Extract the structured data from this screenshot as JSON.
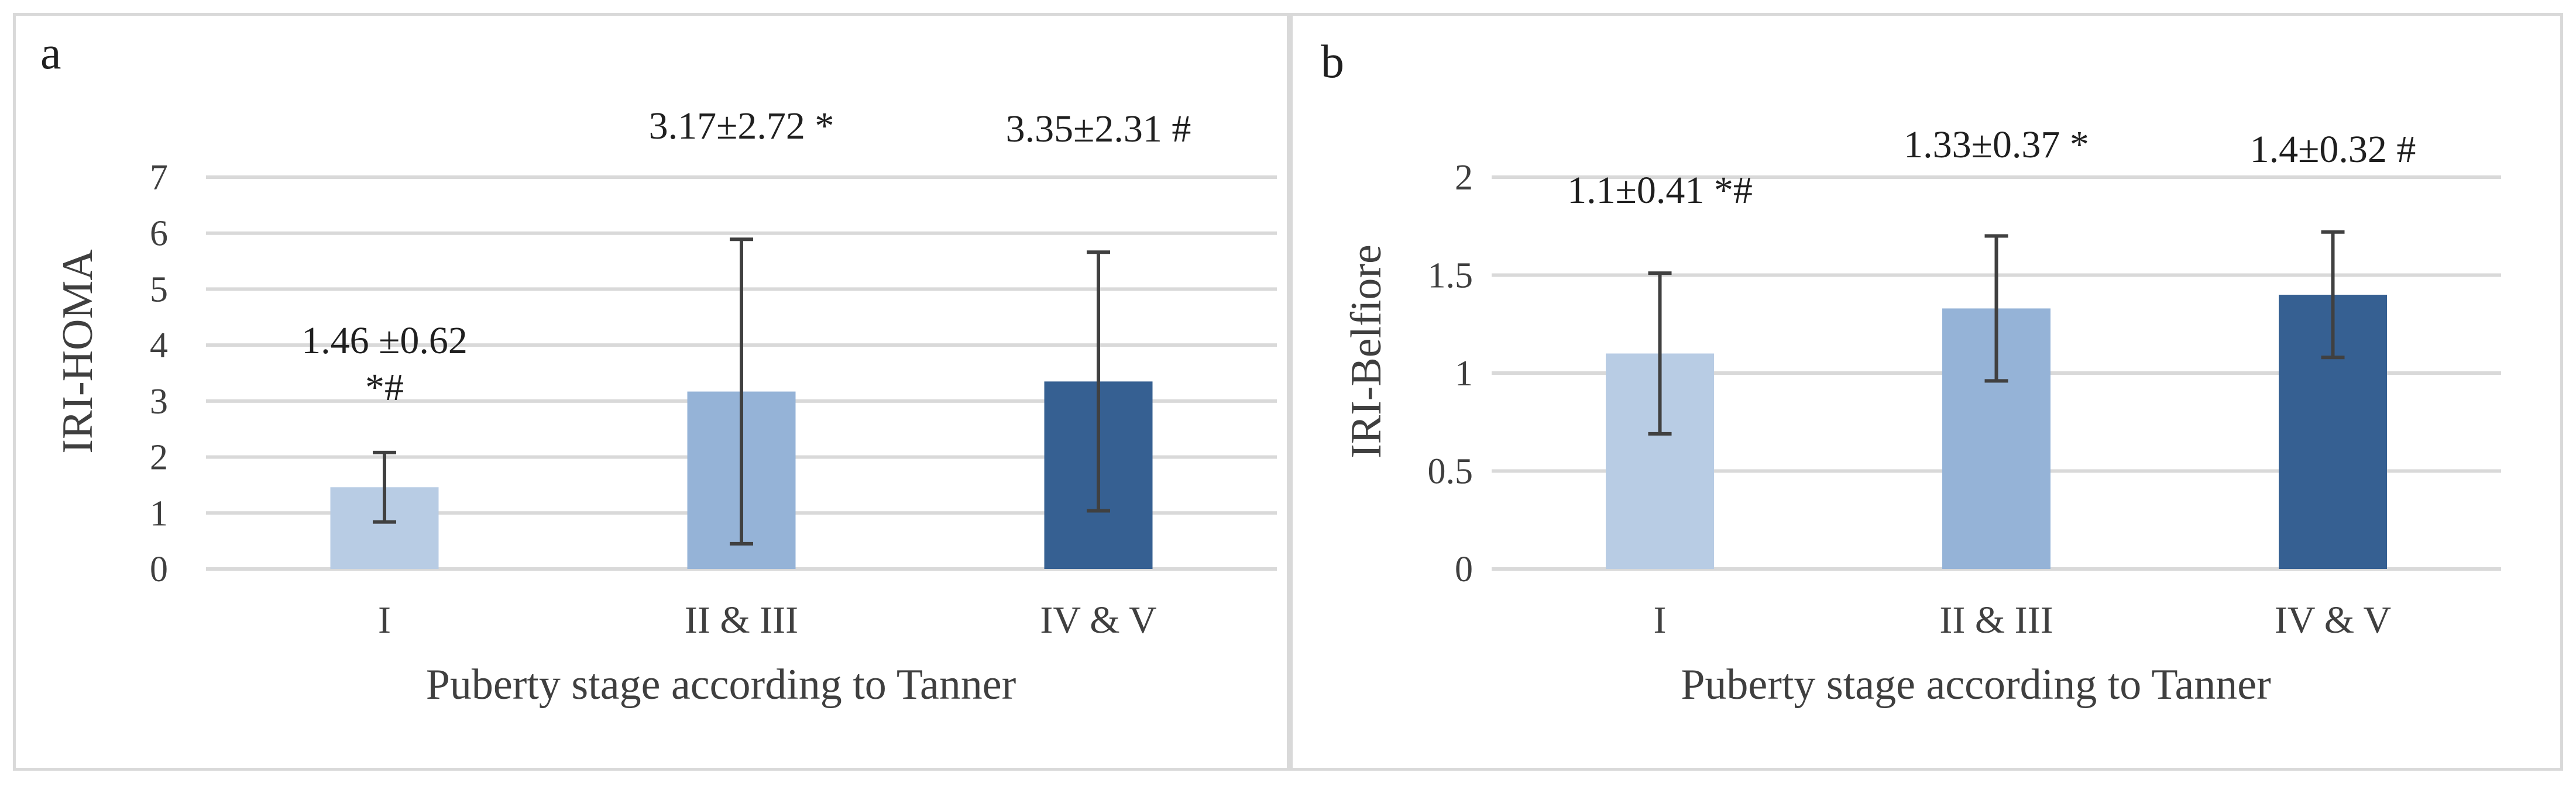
{
  "chart_data": [
    {
      "panel_label": "a",
      "type": "bar",
      "categories": [
        "I",
        "II & III",
        "IV & V"
      ],
      "values": [
        1.46,
        3.17,
        3.35
      ],
      "errors": [
        0.62,
        2.72,
        2.31
      ],
      "data_labels": [
        "1.46 ±0.62 *#",
        "3.17±2.72 *",
        "3.35±2.31 #"
      ],
      "data_label_lines": [
        [
          "1.46 ±0.62",
          "*#"
        ],
        [
          "3.17±2.72 *"
        ],
        [
          "3.35±2.31 #"
        ]
      ],
      "colors": [
        "#b8cce4",
        "#95b3d7",
        "#366092"
      ],
      "xlabel": "Puberty stage according to Tanner",
      "ylabel": "IRI-HOMA",
      "ylim": [
        0,
        7
      ],
      "yticks": [
        0,
        1,
        2,
        3,
        4,
        5,
        6,
        7
      ],
      "ytick_labels": [
        "0",
        "1",
        "2",
        "3",
        "4",
        "5",
        "6",
        "7"
      ],
      "grid": true
    },
    {
      "panel_label": "b",
      "type": "bar",
      "categories": [
        "I",
        "II & III",
        "IV & V"
      ],
      "values": [
        1.1,
        1.33,
        1.4
      ],
      "errors": [
        0.41,
        0.37,
        0.32
      ],
      "data_labels": [
        "1.1±0.41 *#",
        "1.33±0.37 *",
        "1.4±0.32 #"
      ],
      "data_label_lines": [
        [
          "1.1±0.41 *#"
        ],
        [
          "1.33±0.37 *"
        ],
        [
          "1.4±0.32 #"
        ]
      ],
      "colors": [
        "#b8cce4",
        "#95b3d7",
        "#366092"
      ],
      "xlabel": "Puberty stage according to Tanner",
      "ylabel": "IRI-Belfiore",
      "ylim": [
        0,
        2
      ],
      "yticks": [
        0,
        0.5,
        1,
        1.5,
        2
      ],
      "ytick_labels": [
        "0",
        "0.5",
        "1",
        "1.5",
        "2"
      ],
      "grid": true
    }
  ]
}
